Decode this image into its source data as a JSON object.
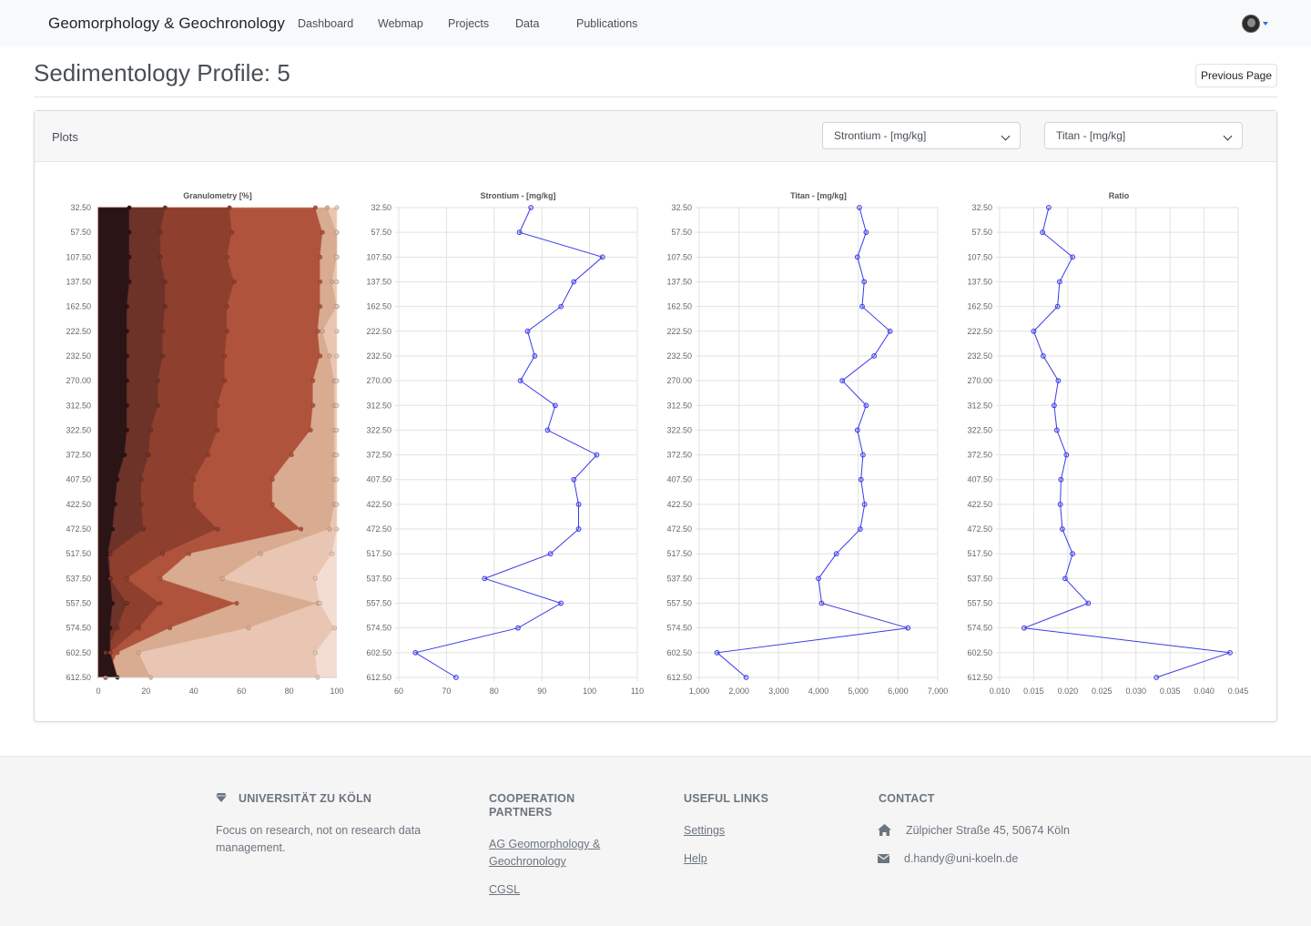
{
  "nav": {
    "brand": "Geomorphology & Geochronology",
    "items": [
      "Dashboard",
      "Webmap",
      "Projects",
      "Data",
      "Publications"
    ],
    "accent": "#1a73e8"
  },
  "header": {
    "title": "Sedimentology Profile: 5",
    "previous_label": "Previous Page"
  },
  "card": {
    "title": "Plots",
    "select1": {
      "value": "Strontium - [mg/kg]"
    },
    "select2": {
      "value": "Titan - [mg/kg]"
    }
  },
  "chart_data": [
    {
      "type": "area",
      "title": "Granulometry [%]",
      "categories": [
        "32.50",
        "57.50",
        "107.50",
        "137.50",
        "162.50",
        "222.50",
        "232.50",
        "270.00",
        "312.50",
        "322.50",
        "372.50",
        "407.50",
        "422.50",
        "472.50",
        "517.50",
        "537.50",
        "557.50",
        "574.50",
        "602.50",
        "612.50"
      ],
      "xlim": [
        0,
        100
      ],
      "xticks": [
        0,
        20,
        40,
        60,
        80,
        100
      ],
      "stacked_cumulative": [
        [
          13,
          13,
          13,
          13,
          12,
          12,
          12,
          12,
          12,
          12,
          11,
          8,
          7,
          6,
          4,
          5,
          6,
          5,
          5,
          8
        ],
        [
          28,
          26,
          26,
          28,
          28,
          27,
          27,
          25,
          25,
          22,
          21,
          18,
          18,
          19,
          5,
          5,
          12,
          8,
          3,
          3
        ],
        [
          55,
          56,
          54,
          57,
          54,
          54,
          53,
          53,
          50,
          50,
          46,
          40,
          40,
          50,
          27,
          12,
          26,
          17,
          5,
          3
        ],
        [
          91,
          94,
          93,
          93,
          93,
          92,
          93,
          90,
          90,
          89,
          81,
          73,
          73,
          85,
          38,
          26,
          58,
          30,
          8,
          3
        ],
        [
          96,
          100,
          100,
          98,
          100,
          94,
          97,
          99,
          99,
          99,
          99,
          99,
          99,
          97,
          68,
          52,
          92,
          63,
          17,
          22
        ],
        [
          100,
          100,
          100,
          100,
          100,
          100,
          100,
          100,
          100,
          100,
          100,
          100,
          100,
          100,
          98,
          91,
          93,
          99,
          91,
          92
        ]
      ],
      "colors": [
        "#2b1416",
        "#6d3228",
        "#8f3f2d",
        "#b0533d",
        "#d9ab91",
        "#e8c6b3",
        "#f3ddd3"
      ]
    },
    {
      "type": "line",
      "title": "Strontium - [mg/kg]",
      "categories": [
        "32.50",
        "57.50",
        "107.50",
        "137.50",
        "162.50",
        "222.50",
        "232.50",
        "270.00",
        "312.50",
        "322.50",
        "372.50",
        "407.50",
        "422.50",
        "472.50",
        "517.50",
        "537.50",
        "557.50",
        "574.50",
        "602.50",
        "612.50"
      ],
      "values": [
        87.7,
        85.3,
        102.7,
        96.7,
        94,
        87,
        88.5,
        85.5,
        92.8,
        91.2,
        101.5,
        96.7,
        97.7,
        97.7,
        91.8,
        78,
        94,
        85,
        63.5,
        72
      ],
      "xlim": [
        60,
        110
      ],
      "xticks": [
        60,
        70,
        80,
        90,
        100,
        110
      ],
      "color": "#3a3ae8"
    },
    {
      "type": "line",
      "title": "Titan - [mg/kg]",
      "categories": [
        "32.50",
        "57.50",
        "107.50",
        "137.50",
        "162.50",
        "222.50",
        "232.50",
        "270.00",
        "312.50",
        "322.50",
        "372.50",
        "407.50",
        "422.50",
        "472.50",
        "517.50",
        "537.50",
        "557.50",
        "574.50",
        "602.50",
        "612.50"
      ],
      "values": [
        5030,
        5200,
        4980,
        5150,
        5100,
        5800,
        5400,
        4600,
        5200,
        4980,
        5120,
        5070,
        5160,
        5050,
        4450,
        4000,
        4080,
        6250,
        1450,
        2180
      ],
      "xlim": [
        1000,
        7000
      ],
      "xticks": [
        1000,
        2000,
        3000,
        4000,
        5000,
        6000,
        7000
      ],
      "xticklabels": [
        "1,000",
        "2,000",
        "3,000",
        "4,000",
        "5,000",
        "6,000",
        "7,000"
      ],
      "color": "#3a3ae8"
    },
    {
      "type": "line",
      "title": "Ratio",
      "categories": [
        "32.50",
        "57.50",
        "107.50",
        "137.50",
        "162.50",
        "222.50",
        "232.50",
        "270.00",
        "312.50",
        "322.50",
        "372.50",
        "407.50",
        "422.50",
        "472.50",
        "517.50",
        "537.50",
        "557.50",
        "574.50",
        "602.50",
        "612.50"
      ],
      "values": [
        0.0172,
        0.0163,
        0.0207,
        0.0188,
        0.0185,
        0.015,
        0.0164,
        0.0186,
        0.018,
        0.0184,
        0.0198,
        0.019,
        0.0189,
        0.0192,
        0.0207,
        0.0196,
        0.023,
        0.0136,
        0.0438,
        0.033
      ],
      "xlim": [
        0.01,
        0.045
      ],
      "xticks": [
        0.01,
        0.015,
        0.02,
        0.025,
        0.03,
        0.035,
        0.04,
        0.045
      ],
      "xticklabels": [
        "0.010",
        "0.015",
        "0.020",
        "0.025",
        "0.030",
        "0.035",
        "0.040",
        "0.045"
      ],
      "color": "#3a3ae8"
    }
  ],
  "footer": {
    "uni": {
      "heading": "UNIVERSITÄT ZU KÖLN",
      "text": "Focus on research, not on research data management."
    },
    "coop": {
      "heading": "COOPERATION PARTNERS",
      "links": [
        "AG Geomorphology & Geochronology",
        "CGSL"
      ]
    },
    "links": {
      "heading": "USEFUL LINKS",
      "items": [
        "Settings",
        "Help"
      ]
    },
    "contact": {
      "heading": "CONTACT",
      "address": "Zülpicher Straße 45, 50674 Köln",
      "email": "d.handy@uni-koeln.de"
    }
  }
}
